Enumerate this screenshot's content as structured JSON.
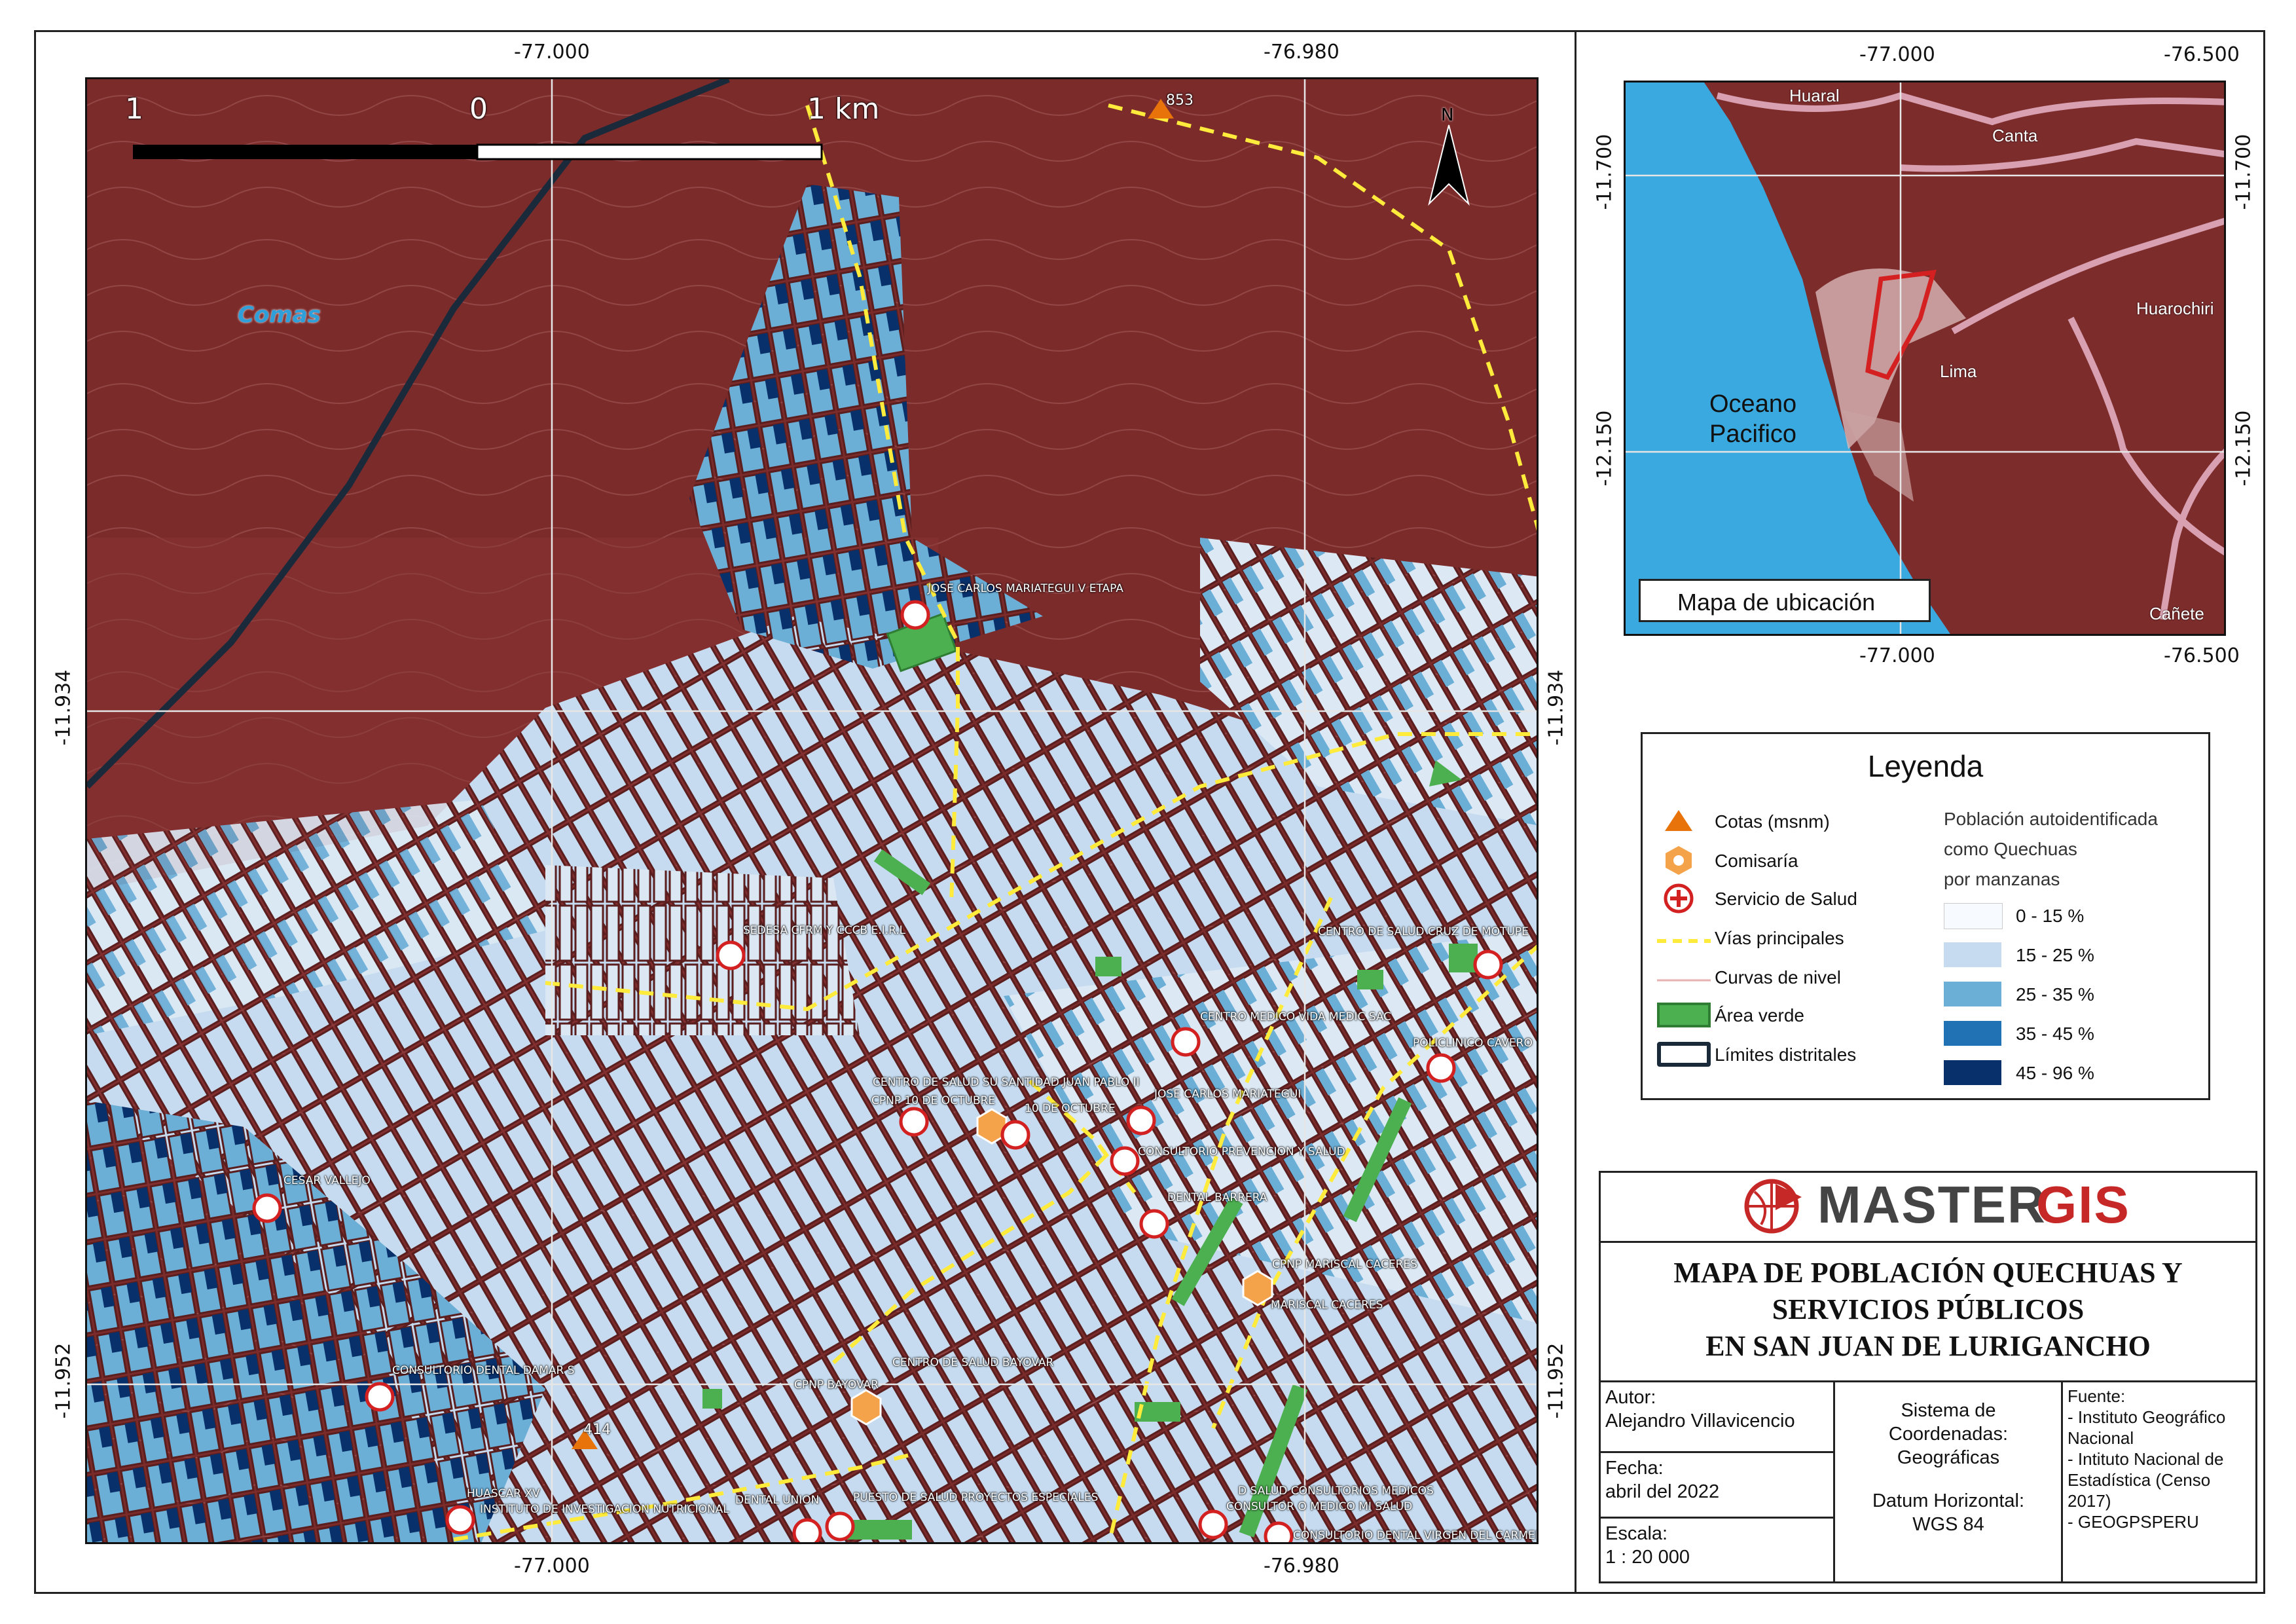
{
  "main_map": {
    "district_label": "Comas",
    "scale_bar": {
      "left": "1",
      "mid": "0",
      "right": "1 km"
    },
    "north": "N",
    "top_ticks": [
      "-77.000",
      "-76.980"
    ],
    "bottom_ticks": [
      "-77.000",
      "-76.980"
    ],
    "left_ticks": [
      "-11.934",
      "-11.952"
    ],
    "right_ticks": [
      "-11.934",
      "-11.952"
    ],
    "elevations": [
      "853",
      "414"
    ],
    "health_labels": [
      "JOSE CARLOS MARIATEGUI V ETAPA",
      "SEDESA CFRM Y CCCB E.I.R.L",
      "CENTRO DE SALUD CRUZ DE MOTUPE",
      "CENTRO MEDICO VIDA MEDIC SAC",
      "POLICLINICO CAVERO",
      "CENTRO DE SALUD SU SANTIDAD JUAN PABLO II",
      "10 DE OCTUBRE",
      "JOSE CARLOS MARIATEGUI",
      "CONSULTORIO PREVENCION Y SALUD",
      "DENTAL BARRERA",
      "CESAR VALLEJO",
      "MARISCAL CACERES",
      "CENTRO DE SALUD BAYOVAR",
      "CONSULTORIO DENTAL DAMAR S",
      "HUASCAR XV",
      "INSTITUTO DE INVESTIGACION NUTRICIONAL",
      "DENTAL UNION",
      "PUESTO DE SALUD PROYECTOS ESPECIALES",
      "D SALUD CONSULTORIOS MEDICOS",
      "CONSULTOR O MEDICO MI SALUD",
      "CONSULTORIO DENTAL VIRGEN DEL CARMEN"
    ],
    "police_labels": [
      "CPNP 10 DE OCTUBRE",
      "CPNP MARISCAL CACERES",
      "CPNP BAYOVAR"
    ]
  },
  "inset": {
    "ticks_top": [
      "-77.000",
      "-76.500"
    ],
    "ticks_bottom": [
      "-77.000",
      "-76.500"
    ],
    "ticks_left": [
      "-11.700",
      "-12.150"
    ],
    "ticks_right": [
      "-11.700",
      "-12.150"
    ],
    "places": [
      "Huaral",
      "Canta",
      "Huarochiri",
      "Lima",
      "Cañete"
    ],
    "ocean": [
      "Oceano",
      "Pacifico"
    ],
    "caption": "Mapa de ubicación"
  },
  "legend": {
    "title": "Leyenda",
    "items": [
      "Cotas (msnm)",
      "Comisaría",
      "Servicio de Salud",
      "Vías principales",
      "Curvas de nivel",
      "Área verde",
      "Límites distritales"
    ],
    "class_heading": [
      "Población autoidentificada",
      "como Quechuas",
      "por manzanas"
    ],
    "classes": [
      {
        "label": "0 - 15 %",
        "color": "#f7fbff"
      },
      {
        "label": "15 - 25 %",
        "color": "#c6dbef"
      },
      {
        "label": "25 - 35 %",
        "color": "#6baed6"
      },
      {
        "label": "35 - 45 %",
        "color": "#2171b5"
      },
      {
        "label": "45 - 96 %",
        "color": "#08306b"
      }
    ]
  },
  "brand": {
    "name_a": "MASTER",
    "name_b": "GIS"
  },
  "title": [
    "MAPA DE POBLACIÓN QUECHUAS Y",
    "SERVICIOS PÚBLICOS",
    "EN SAN JUAN DE LURIGANCHO"
  ],
  "info": {
    "author_label": "Autor:",
    "author": "Alejandro Villavicencio",
    "date_label": "Fecha:",
    "date": "abril del 2022",
    "scale_label": "Escala:",
    "scale": "1 : 20 000",
    "crs": [
      "Sistema de",
      "Coordenadas:",
      "Geográficas"
    ],
    "datum": [
      "Datum Horizontal:",
      "WGS 84"
    ],
    "source_label": "Fuente:",
    "sources": [
      "- Instituto Geográfico",
      "Nacional",
      "- Intituto Nacional de",
      "Estadística (Censo",
      "2017)",
      "- GEOGPSPERU"
    ]
  }
}
